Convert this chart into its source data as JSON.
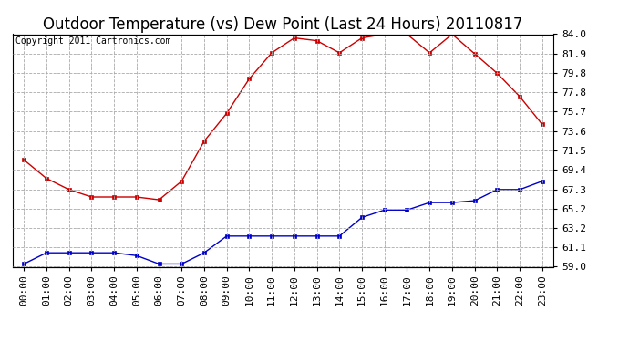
{
  "title": "Outdoor Temperature (vs) Dew Point (Last 24 Hours) 20110817",
  "copyright_text": "Copyright 2011 Cartronics.com",
  "hours": [
    "00:00",
    "01:00",
    "02:00",
    "03:00",
    "04:00",
    "05:00",
    "06:00",
    "07:00",
    "08:00",
    "09:00",
    "10:00",
    "11:00",
    "12:00",
    "13:00",
    "14:00",
    "15:00",
    "16:00",
    "17:00",
    "18:00",
    "19:00",
    "20:00",
    "21:00",
    "22:00",
    "23:00"
  ],
  "temp": [
    70.5,
    68.5,
    67.3,
    66.5,
    66.5,
    66.5,
    66.2,
    68.2,
    72.5,
    75.5,
    79.2,
    82.0,
    83.6,
    83.3,
    82.0,
    83.6,
    84.0,
    84.0,
    82.0,
    84.0,
    81.9,
    79.8,
    77.3,
    74.3
  ],
  "dew": [
    59.3,
    60.5,
    60.5,
    60.5,
    60.5,
    60.2,
    59.3,
    59.3,
    60.5,
    62.3,
    62.3,
    62.3,
    62.3,
    62.3,
    62.3,
    64.3,
    65.1,
    65.1,
    65.9,
    65.9,
    66.1,
    67.3,
    67.3,
    68.2
  ],
  "ylim": [
    59.0,
    84.0
  ],
  "yticks": [
    59.0,
    61.1,
    63.2,
    65.2,
    67.3,
    69.4,
    71.5,
    73.6,
    75.7,
    77.8,
    79.8,
    81.9,
    84.0
  ],
  "yticklabels": [
    "59.0",
    "61.1",
    "63.2",
    "65.2",
    "67.3",
    "69.4",
    "71.5",
    "73.6",
    "75.7",
    "77.8",
    "79.8",
    "81.9",
    "84.0"
  ],
  "temp_color": "#cc0000",
  "dew_color": "#0000cc",
  "bg_color": "#ffffff",
  "grid_color": "#aaaaaa",
  "title_fontsize": 12,
  "tick_fontsize": 8,
  "copyright_fontsize": 7
}
